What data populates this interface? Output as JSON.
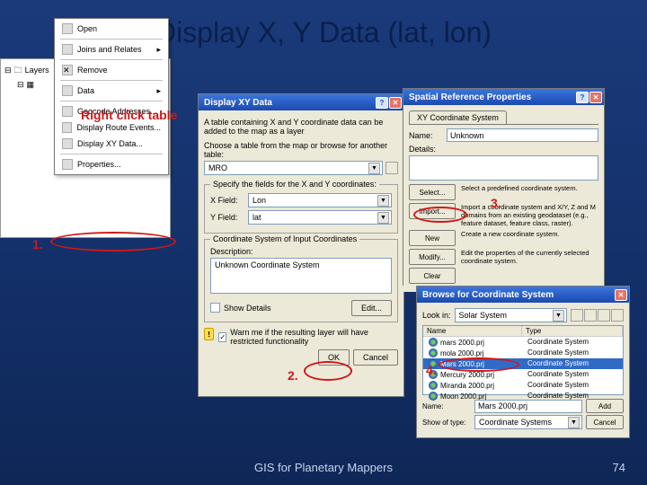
{
  "slide": {
    "title": "Display X, Y Data (lat, lon)",
    "footer": "GIS for Planetary Mappers",
    "page": "74"
  },
  "annotations": {
    "right_click": "Right click table",
    "n1": "1.",
    "n2": "2.",
    "n3": "3.",
    "n4": "4."
  },
  "layers": {
    "root": "Layers",
    "ctx": {
      "open": "Open",
      "joins": "Joins and Relates",
      "remove": "Remove",
      "data": "Data",
      "geocode": "Geocode Addresses...",
      "route": "Display Route Events...",
      "xy": "Display XY Data...",
      "props": "Properties..."
    }
  },
  "xy": {
    "title": "Display XY Data",
    "desc": "A table containing X and Y coordinate data can be added to the map as a layer",
    "choose": "Choose a table from the map or browse for another table:",
    "table_sel": "MRO",
    "fields_label": "Specify the fields for the X and Y coordinates:",
    "x_label": "X Field:",
    "y_label": "Y Field:",
    "x_val": "Lon",
    "y_val": "lat",
    "cs_label": "Coordinate System of Input Coordinates",
    "cs_desc_label": "Description:",
    "cs_desc": "Unknown Coordinate System",
    "show_details": "Show Details",
    "edit_btn": "Edit...",
    "warn": "Warn me if the resulting layer will have restricted functionality",
    "ok": "OK",
    "cancel": "Cancel"
  },
  "srp": {
    "title": "Spatial Reference Properties",
    "tab": "XY Coordinate System",
    "name_label": "Name:",
    "name_val": "Unknown",
    "details_label": "Details:",
    "select_btn": "Select...",
    "select_desc": "Select a predefined coordinate system.",
    "import_btn": "Import...",
    "import_desc": "Import a coordinate system and X/Y, Z and M domains from an existing geodataset (e.g., feature dataset, feature class, raster).",
    "new_btn": "New",
    "new_desc": "Create a new coordinate system.",
    "modify_btn": "Modify...",
    "modify_desc": "Edit the properties of the currently selected coordinate system.",
    "clear_btn": "Clear"
  },
  "browse": {
    "title": "Browse for Coordinate System",
    "lookin": "Look in:",
    "lookin_val": "Solar System",
    "col_name": "Name",
    "col_type": "Type",
    "files": [
      {
        "name": "mars 2000.prj",
        "type": "Coordinate System"
      },
      {
        "name": "mola 2000.prj",
        "type": "Coordinate System"
      },
      {
        "name": "Mars 2000.prj",
        "type": "Coordinate System"
      },
      {
        "name": "Mercury 2000.prj",
        "type": "Coordinate System"
      },
      {
        "name": "Miranda 2000.prj",
        "type": "Coordinate System"
      },
      {
        "name": "Moon 2000.prj",
        "type": "Coordinate System"
      }
    ],
    "name_label": "Name:",
    "name_val": "Mars 2000.prj",
    "type_label": "Show of type:",
    "type_val": "Coordinate Systems",
    "add": "Add",
    "cancel": "Cancel"
  }
}
